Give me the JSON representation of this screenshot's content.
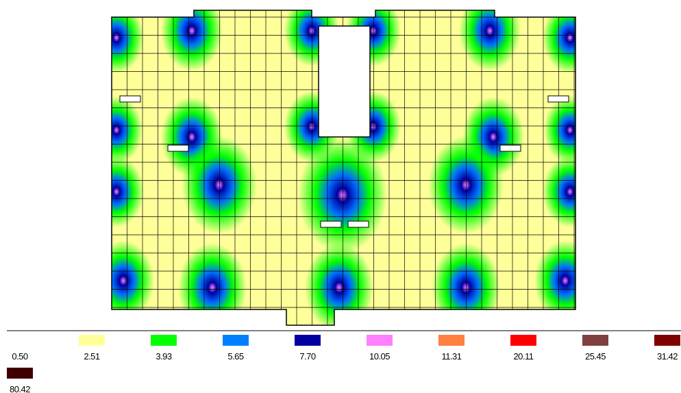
{
  "legend": {
    "items": [
      {
        "label": "0.50"
      },
      {
        "label": "2.51",
        "color": "#ffff99"
      },
      {
        "label": "3.93",
        "color": "#00ff00"
      },
      {
        "label": "5.65",
        "color": "#0080ff"
      },
      {
        "label": "7.70",
        "color": "#0000a0"
      },
      {
        "label": "10.05",
        "color": "#ff80ff"
      },
      {
        "label": "11.31",
        "color": "#ff8040"
      },
      {
        "label": "20.11",
        "color": "#ff0000"
      },
      {
        "label": "25.45",
        "color": "#804040"
      },
      {
        "label": "31.42",
        "color": "#800000"
      },
      {
        "label": "80.42",
        "color": "#400000"
      }
    ]
  }
}
